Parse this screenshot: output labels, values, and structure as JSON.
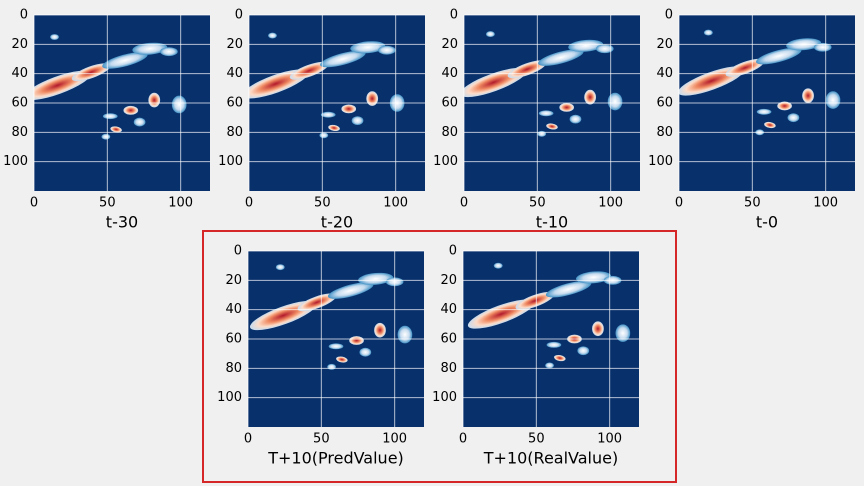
{
  "chart_data": [
    {
      "type": "heatmap",
      "xlabel": "t-30",
      "xlim": [
        0,
        120
      ],
      "ylim": [
        120,
        0
      ],
      "xticks": [
        0,
        50,
        100
      ],
      "yticks": [
        0,
        20,
        40,
        60,
        80,
        100
      ],
      "grid": true,
      "color": "#08306b"
    },
    {
      "type": "heatmap",
      "xlabel": "t-20",
      "xlim": [
        0,
        120
      ],
      "ylim": [
        120,
        0
      ],
      "xticks": [
        0,
        50,
        100
      ],
      "yticks": [
        0,
        20,
        40,
        60,
        80,
        100
      ],
      "grid": true,
      "color": "#08306b"
    },
    {
      "type": "heatmap",
      "xlabel": "t-10",
      "xlim": [
        0,
        120
      ],
      "ylim": [
        120,
        0
      ],
      "xticks": [
        0,
        50,
        100
      ],
      "yticks": [
        0,
        20,
        40,
        60,
        80,
        100
      ],
      "grid": true,
      "color": "#08306b"
    },
    {
      "type": "heatmap",
      "xlabel": "t-0",
      "xlim": [
        0,
        120
      ],
      "ylim": [
        120,
        0
      ],
      "xticks": [
        0,
        50,
        100
      ],
      "yticks": [
        0,
        20,
        40,
        60,
        80,
        100
      ],
      "grid": true,
      "color": "#08306b"
    },
    {
      "type": "heatmap",
      "xlabel": "T+10(PredValue)",
      "xlim": [
        0,
        120
      ],
      "ylim": [
        120,
        0
      ],
      "xticks": [
        0,
        50,
        100
      ],
      "yticks": [
        0,
        20,
        40,
        60,
        80,
        100
      ],
      "grid": true,
      "color": "#08306b"
    },
    {
      "type": "heatmap",
      "xlabel": "T+10(RealValue)",
      "xlim": [
        0,
        120
      ],
      "ylim": [
        120,
        0
      ],
      "xticks": [
        0,
        50,
        100
      ],
      "yticks": [
        0,
        20,
        40,
        60,
        80,
        100
      ],
      "grid": true,
      "color": "#08306b"
    }
  ]
}
